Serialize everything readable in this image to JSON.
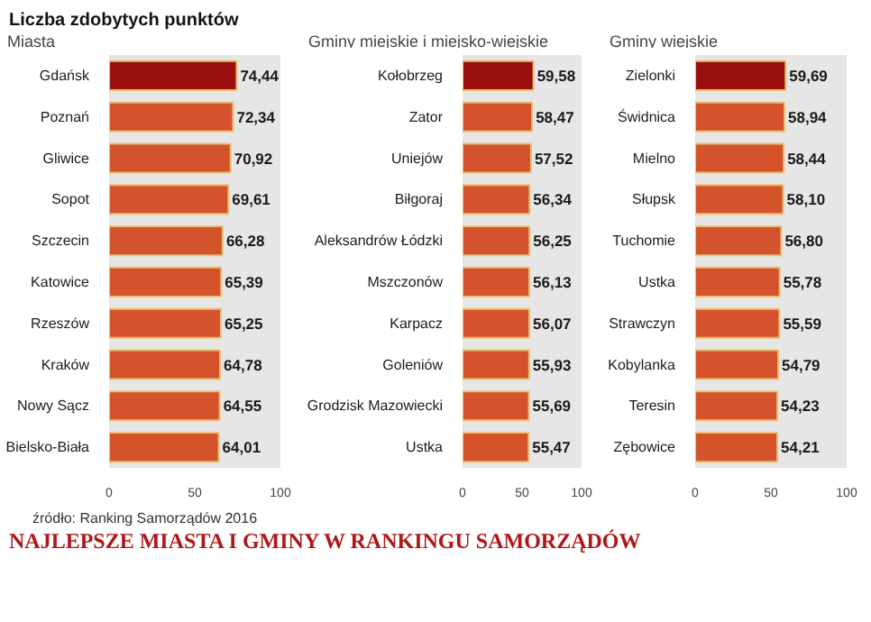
{
  "chart_data": [
    {
      "type": "bar",
      "orientation": "horizontal",
      "title": "Liczba zdobytych punktów",
      "subtitle": "Miasta",
      "categories": [
        "Gdańsk",
        "Poznań",
        "Gliwice",
        "Sopot",
        "Szczecin",
        "Katowice",
        "Rzeszów",
        "Kraków",
        "Nowy Sącz",
        "Bielsko-Biała"
      ],
      "values": [
        74.44,
        72.34,
        70.92,
        69.61,
        66.28,
        65.39,
        65.25,
        64.78,
        64.55,
        64.01
      ],
      "value_labels": [
        "74,44",
        "72,34",
        "70,92",
        "69,61",
        "66,28",
        "65,39",
        "65,25",
        "64,78",
        "64,55",
        "64,01"
      ],
      "colors": [
        "#9a0f0f",
        "#d4532c",
        "#d4532c",
        "#d4532c",
        "#d4532c",
        "#d4532c",
        "#d4532c",
        "#d4532c",
        "#d4532c",
        "#d4532c"
      ],
      "xlim": [
        0,
        100
      ],
      "xticks": [
        0,
        50,
        100
      ],
      "annotations": [
        "źródło: Ranking Samorządów 2016",
        "NAJLEPSZE MIASTA I GMINY W RANKINGU SAMORZĄDÓW"
      ]
    },
    {
      "type": "bar",
      "orientation": "horizontal",
      "subtitle": "Gminy miejskie i miejsko-wiejskie",
      "categories": [
        "Kołobrzeg",
        "Zator",
        "Uniejów",
        "Biłgoraj",
        "Aleksandrów Łódzki",
        "Mszczonów",
        "Karpacz",
        "Goleniów",
        "Grodzisk Mazowiecki",
        "Ustka"
      ],
      "values": [
        59.58,
        58.47,
        57.52,
        56.34,
        56.25,
        56.13,
        56.07,
        55.93,
        55.69,
        55.47
      ],
      "value_labels": [
        "59,58",
        "58,47",
        "57,52",
        "56,34",
        "56,25",
        "56,13",
        "56,07",
        "55,93",
        "55,69",
        "55,47"
      ],
      "colors": [
        "#9a0f0f",
        "#d4532c",
        "#d4532c",
        "#d4532c",
        "#d4532c",
        "#d4532c",
        "#d4532c",
        "#d4532c",
        "#d4532c",
        "#d4532c"
      ],
      "xlim": [
        0,
        100
      ],
      "xticks": [
        0,
        50,
        100
      ]
    },
    {
      "type": "bar",
      "orientation": "horizontal",
      "subtitle": "Gminy wiejskie",
      "categories": [
        "Zielonki",
        "Świdnica",
        "Mielno",
        "Słupsk",
        "Tuchomie",
        "Ustka",
        "Strawczyn",
        "Kobylanka",
        "Teresin",
        "Zębowice"
      ],
      "values": [
        59.69,
        58.94,
        58.44,
        58.1,
        56.8,
        55.78,
        55.59,
        54.79,
        54.23,
        54.21
      ],
      "value_labels": [
        "59,69",
        "58,94",
        "58,44",
        "58,10",
        "56,80",
        "55,78",
        "55,59",
        "54,79",
        "54,23",
        "54,21"
      ],
      "colors": [
        "#9a0f0f",
        "#d4532c",
        "#d4532c",
        "#d4532c",
        "#d4532c",
        "#d4532c",
        "#d4532c",
        "#d4532c",
        "#d4532c",
        "#d4532c"
      ],
      "xlim": [
        0,
        100
      ],
      "xticks": [
        0,
        50,
        100
      ]
    }
  ]
}
